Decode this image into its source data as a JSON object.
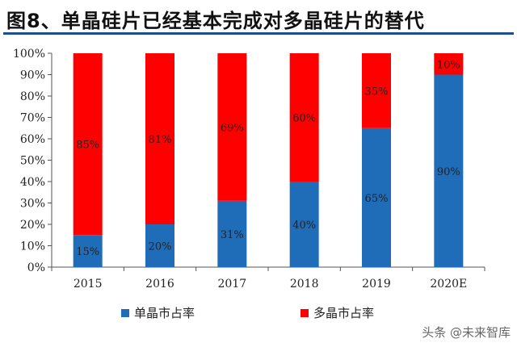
{
  "title": "图8、单晶硅片已经基本完成对多晶硅片的替代",
  "watermark": "头条 @未来智库",
  "colors": {
    "mono": "#1f6cb8",
    "poly": "#ff0000",
    "title_rule": "#1f4e8c"
  },
  "chart_data": {
    "type": "bar",
    "stacked": true,
    "categories": [
      "2015",
      "2016",
      "2017",
      "2018",
      "2019",
      "2020E"
    ],
    "series": [
      {
        "name": "单晶市占率",
        "values": [
          15,
          20,
          31,
          40,
          65,
          90
        ],
        "labels": [
          "15%",
          "20%",
          "31%",
          "40%",
          "65%",
          "90%"
        ]
      },
      {
        "name": "多晶市占率",
        "values": [
          85,
          81,
          69,
          60,
          35,
          10
        ],
        "labels": [
          "85%",
          "81%",
          "69%",
          "60%",
          "35%",
          "10%"
        ]
      }
    ],
    "yticks": [
      "0%",
      "10%",
      "20%",
      "30%",
      "40%",
      "50%",
      "60%",
      "70%",
      "80%",
      "90%",
      "100%"
    ],
    "ylim": [
      0,
      100
    ],
    "grid": false,
    "legend": "bottom"
  }
}
